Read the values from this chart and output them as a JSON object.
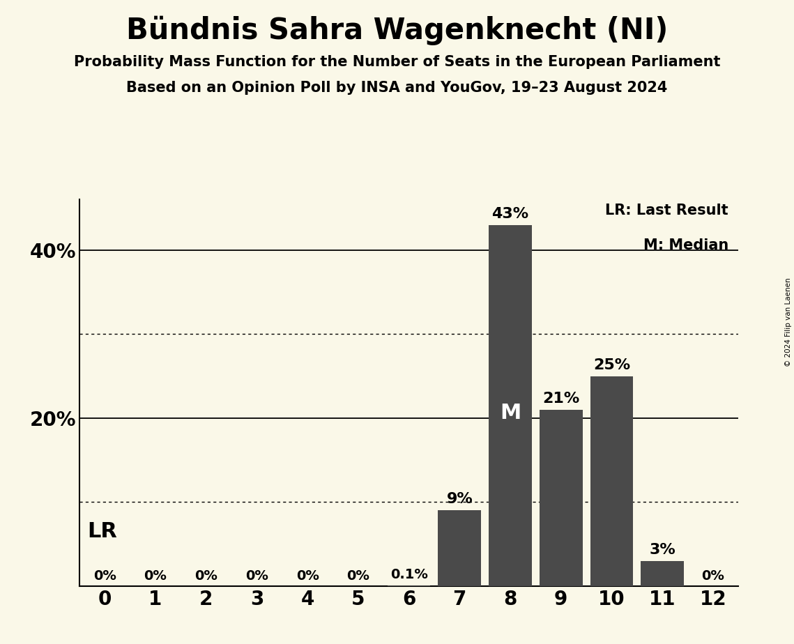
{
  "title": "Bündnis Sahra Wagenknecht (NI)",
  "subtitle1": "Probability Mass Function for the Number of Seats in the European Parliament",
  "subtitle2": "Based on an Opinion Poll by INSA and YouGov, 19–23 August 2024",
  "copyright": "© 2024 Filip van Laenen",
  "seats": [
    0,
    1,
    2,
    3,
    4,
    5,
    6,
    7,
    8,
    9,
    10,
    11,
    12
  ],
  "probabilities": [
    0.0,
    0.0,
    0.0,
    0.0,
    0.0,
    0.0,
    0.1,
    9.0,
    43.0,
    21.0,
    25.0,
    3.0,
    0.0
  ],
  "bar_color": "#4a4a4a",
  "background_color": "#faf8e8",
  "bar_labels": [
    "0%",
    "0%",
    "0%",
    "0%",
    "0%",
    "0%",
    "0.1%",
    "9%",
    "43%",
    "21%",
    "25%",
    "3%",
    "0%"
  ],
  "median_seat": 8,
  "lr_seat": 0,
  "solid_yticks": [
    20,
    40
  ],
  "dotted_lines": [
    10,
    30
  ],
  "legend_lr": "LR: Last Result",
  "legend_m": "M: Median",
  "lr_label": "LR",
  "m_label": "M",
  "xlim": [
    -0.5,
    12.5
  ],
  "ylim": [
    0,
    46
  ]
}
